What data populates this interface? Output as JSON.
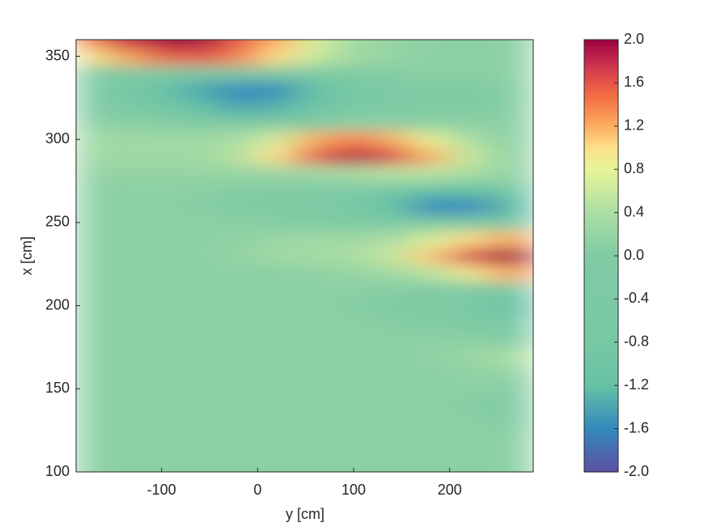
{
  "chart_data": {
    "type": "heatmap",
    "xlabel": "y [cm]",
    "ylabel": "x [cm]",
    "colormap": "Spectral_r",
    "xlim": [
      -189,
      287
    ],
    "ylim": [
      100,
      360
    ],
    "xticks": [
      -100,
      0,
      100,
      200
    ],
    "yticks": [
      100,
      150,
      200,
      250,
      300,
      350
    ],
    "clim": [
      -2,
      2
    ],
    "cticks": [
      {
        "value": -2,
        "label": "-2.0"
      },
      -1.6,
      -1.2,
      -0.8,
      -0.4,
      {
        "value": 0,
        "label": "0.0"
      },
      0.4,
      0.8,
      1.2,
      1.6,
      {
        "value": 2,
        "label": "2.0"
      }
    ],
    "x": [
      -180,
      -140,
      -100,
      -60,
      -20,
      20,
      60,
      100,
      140,
      180,
      220,
      260,
      280
    ],
    "y": [
      100,
      110,
      120,
      130,
      140,
      150,
      160,
      170,
      180,
      190,
      200,
      210,
      220,
      230,
      240,
      250,
      260,
      270,
      280,
      290,
      300,
      310,
      320,
      330,
      340,
      350,
      360
    ],
    "z": [
      [
        0.1,
        0.1,
        0.1,
        0.1,
        0.1,
        0.1,
        0.1,
        0.1,
        0.1,
        0.1,
        0.1,
        0.1,
        0.1
      ],
      [
        0.1,
        0.1,
        0.1,
        0.1,
        0.1,
        0.1,
        0.1,
        0.1,
        0.1,
        0.1,
        0.1,
        0.1,
        0.1
      ],
      [
        0.1,
        0.1,
        0.1,
        0.1,
        0.1,
        0.1,
        0.1,
        0.1,
        0.1,
        0.1,
        0.1,
        0.1,
        0.1
      ],
      [
        0.1,
        0.1,
        0.1,
        0.1,
        0.1,
        0.1,
        0.1,
        0.1,
        0.1,
        0.1,
        0.1,
        0.05,
        0.0
      ],
      [
        0.1,
        0.1,
        0.1,
        0.1,
        0.1,
        0.1,
        0.1,
        0.1,
        0.1,
        0.1,
        0.05,
        0.0,
        0.0
      ],
      [
        0.1,
        0.1,
        0.1,
        0.1,
        0.1,
        0.1,
        0.1,
        0.1,
        0.1,
        0.1,
        0.1,
        0.05,
        0.05
      ],
      [
        0.1,
        0.1,
        0.1,
        0.1,
        0.1,
        0.1,
        0.1,
        0.1,
        0.1,
        0.1,
        0.15,
        0.2,
        0.2
      ],
      [
        0.1,
        0.1,
        0.1,
        0.1,
        0.1,
        0.1,
        0.1,
        0.1,
        0.1,
        0.15,
        0.25,
        0.35,
        0.5
      ],
      [
        0.1,
        0.1,
        0.1,
        0.1,
        0.1,
        0.1,
        0.1,
        0.1,
        0.1,
        0.1,
        0.1,
        0.0,
        -0.2
      ],
      [
        0.1,
        0.1,
        0.1,
        0.1,
        0.1,
        0.1,
        0.1,
        0.1,
        0.05,
        0.0,
        -0.2,
        -0.6,
        -0.9
      ],
      [
        0.1,
        0.1,
        0.1,
        0.1,
        0.1,
        0.1,
        0.1,
        0.05,
        0.0,
        -0.1,
        -0.4,
        -1.0,
        -1.3
      ],
      [
        0.1,
        0.1,
        0.1,
        0.1,
        0.1,
        0.1,
        0.1,
        0.1,
        0.05,
        0.0,
        -0.2,
        -0.6,
        -0.8
      ],
      [
        0.1,
        0.1,
        0.1,
        0.1,
        0.1,
        0.1,
        0.15,
        0.2,
        0.3,
        0.5,
        0.9,
        1.2,
        1.3
      ],
      [
        0.1,
        0.1,
        0.1,
        0.1,
        0.2,
        0.3,
        0.35,
        0.4,
        0.6,
        1.1,
        1.7,
        2.0,
        2.0
      ],
      [
        0.1,
        0.1,
        0.1,
        0.1,
        0.15,
        0.25,
        0.3,
        0.3,
        0.4,
        0.7,
        1.0,
        1.2,
        1.2
      ],
      [
        0.1,
        0.1,
        0.1,
        0.1,
        0.1,
        0.05,
        0.0,
        -0.1,
        -0.3,
        -0.5,
        -0.6,
        -0.6,
        -0.6
      ],
      [
        0.1,
        0.1,
        0.1,
        0.05,
        0.0,
        -0.1,
        -0.3,
        -0.7,
        -1.2,
        -1.6,
        -1.6,
        -1.3,
        -1.2
      ],
      [
        0.1,
        0.1,
        0.1,
        0.1,
        0.05,
        0.0,
        -0.1,
        -0.4,
        -0.8,
        -1.1,
        -1.1,
        -0.8,
        -0.7
      ],
      [
        0.15,
        0.2,
        0.2,
        0.2,
        0.2,
        0.25,
        0.3,
        0.4,
        0.5,
        0.5,
        0.4,
        0.2,
        0.1
      ],
      [
        0.25,
        0.3,
        0.3,
        0.3,
        0.5,
        1.0,
        1.6,
        1.9,
        1.7,
        1.2,
        0.6,
        0.2,
        0.1
      ],
      [
        0.3,
        0.3,
        0.3,
        0.3,
        0.4,
        0.7,
        1.2,
        1.4,
        1.2,
        0.8,
        0.4,
        0.15,
        0.1
      ],
      [
        0.1,
        0.1,
        0.05,
        0.0,
        -0.1,
        -0.1,
        0.0,
        0.1,
        0.1,
        0.1,
        0.1,
        0.1,
        0.1
      ],
      [
        -0.2,
        -0.5,
        -0.9,
        -1.2,
        -1.4,
        -1.3,
        -1.0,
        -0.6,
        -0.3,
        -0.1,
        0.0,
        0.05,
        0.1
      ],
      [
        -0.3,
        -0.7,
        -1.1,
        -1.4,
        -1.6,
        -1.6,
        -1.2,
        -0.8,
        -0.4,
        -0.1,
        0.0,
        0.05,
        0.1
      ],
      [
        0.0,
        -0.1,
        -0.2,
        -0.2,
        -0.2,
        -0.2,
        -0.1,
        0.0,
        0.05,
        0.1,
        0.1,
        0.1,
        0.1
      ],
      [
        0.9,
        1.2,
        1.5,
        1.6,
        1.4,
        1.0,
        0.6,
        0.3,
        0.2,
        0.1,
        0.1,
        0.1,
        0.1
      ],
      [
        1.4,
        1.8,
        2.0,
        2.0,
        1.6,
        1.2,
        0.7,
        0.3,
        0.2,
        0.1,
        0.1,
        0.1,
        0.1
      ]
    ]
  }
}
